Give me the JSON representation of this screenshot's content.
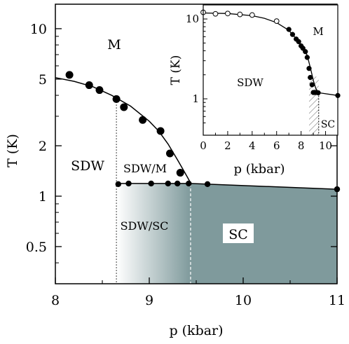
{
  "chart_data": [
    {
      "type": "scatter",
      "panel": "main",
      "xlabel": "p (kbar)",
      "ylabel": "T (K)",
      "xlim": [
        8,
        11
      ],
      "ylim": [
        0.3,
        14
      ],
      "y_scale": "log",
      "x_ticks": [
        "8",
        "9",
        "10",
        "11"
      ],
      "x_tick_values": [
        8,
        9,
        10,
        11
      ],
      "y_ticks": [
        "10",
        "5",
        "2",
        "1",
        "0.5"
      ],
      "y_tick_values": [
        10,
        5,
        2,
        1,
        0.5
      ],
      "grid": false,
      "region_labels": {
        "m": "M",
        "sdw": "SDW",
        "sdw_m": "SDW/M",
        "sdw_sc": "SDW/SC",
        "sc": "SC"
      },
      "series": [
        {
          "marker": "filled-circle",
          "x": [
            8.15,
            8.36,
            8.47,
            8.65,
            8.73,
            8.93,
            9.12,
            9.22,
            9.33
          ],
          "y": [
            5.3,
            4.6,
            4.3,
            3.8,
            3.4,
            2.85,
            2.45,
            1.8,
            1.38
          ]
        },
        {
          "marker": "filled-circle",
          "x": [
            8.67,
            8.78,
            9.02,
            9.2,
            9.3,
            9.42,
            9.62,
            11.0
          ],
          "y": [
            1.18,
            1.19,
            1.19,
            1.19,
            1.19,
            1.19,
            1.18,
            1.1
          ]
        }
      ],
      "curves": {
        "sdw_boundary": {
          "x": [
            8.0,
            8.2,
            8.4,
            8.6,
            8.8,
            9.0,
            9.1,
            9.2,
            9.3,
            9.38,
            9.44
          ],
          "y": [
            5.1,
            4.85,
            4.5,
            4.0,
            3.45,
            2.8,
            2.45,
            2.05,
            1.65,
            1.38,
            1.2
          ]
        },
        "sc_boundary": {
          "x": [
            8.65,
            9.44,
            11.0
          ],
          "y": [
            1.19,
            1.19,
            1.1
          ]
        }
      },
      "dotted_markers": [
        {
          "x": 8.65,
          "y_from": 0.3,
          "y_to": 3.8
        }
      ],
      "dashed_markers": [
        {
          "x": 9.44,
          "y_from": 0.3,
          "y_to": 1.19
        }
      ],
      "colors": {
        "sc_fill": "#7f9a9c",
        "sdw_sc_gradient_start": "#ffffff",
        "ink": "#000000"
      }
    },
    {
      "type": "scatter",
      "panel": "inset",
      "xlabel": "p (kbar)",
      "ylabel": "T (K)",
      "xlim": [
        0,
        11
      ],
      "ylim": [
        0.35,
        15
      ],
      "y_scale": "log",
      "x_ticks": [
        "0",
        "2",
        "4",
        "6",
        "8",
        "10"
      ],
      "x_tick_values": [
        0,
        2,
        4,
        6,
        8,
        10
      ],
      "y_ticks": [
        "10",
        "1"
      ],
      "y_tick_values": [
        10,
        1
      ],
      "grid": false,
      "region_labels": {
        "m": "M",
        "sdw": "SDW",
        "sc": "SC"
      },
      "series": [
        {
          "marker": "open-circle",
          "x": [
            0,
            1,
            2,
            3,
            4,
            6
          ],
          "y": [
            12.1,
            11.6,
            11.7,
            11.4,
            11.2,
            9.4
          ]
        },
        {
          "marker": "filled-circle",
          "x": [
            7.0,
            7.3,
            7.6,
            7.8,
            8.0,
            8.15,
            8.35,
            8.5,
            8.65,
            8.75,
            8.9,
            9.0,
            9.1,
            9.2,
            9.4,
            11.0
          ],
          "y": [
            7.4,
            6.4,
            5.6,
            5.2,
            4.6,
            4.3,
            3.9,
            3.3,
            2.4,
            1.85,
            1.5,
            1.2,
            1.2,
            1.2,
            1.19,
            1.1
          ]
        }
      ],
      "curves": {
        "boundary": {
          "x": [
            0,
            2,
            4,
            5,
            6,
            7,
            8,
            8.5,
            8.8,
            9.0,
            9.2,
            9.44
          ],
          "y": [
            11.9,
            11.7,
            11.0,
            10.2,
            9.0,
            7.2,
            4.8,
            3.5,
            2.3,
            1.7,
            1.35,
            1.19
          ]
        },
        "sc_boundary": {
          "x": [
            9.44,
            11.0
          ],
          "y": [
            1.19,
            1.1
          ]
        }
      },
      "hatched_region": {
        "x_from": 8.65,
        "x_to": 9.44
      },
      "dashed_markers": [
        {
          "x": 9.44,
          "y_from": 0.35,
          "y_to": 1.19
        }
      ]
    }
  ]
}
